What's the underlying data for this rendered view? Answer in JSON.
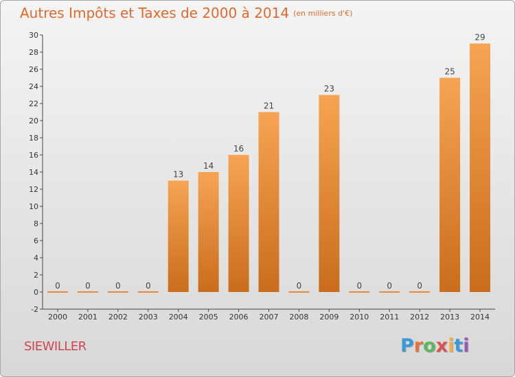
{
  "header": {
    "title": "Autres Impôts et Taxes de 2000 à 2014",
    "subtitle": "(en milliers d'€)"
  },
  "footer": {
    "town": "SIEWILLER",
    "logo": {
      "letters": [
        "P",
        "r",
        "o",
        "x",
        "i",
        "t",
        "i"
      ],
      "colors": [
        "#3a9ad9",
        "#e8733a",
        "#5cb85c",
        "#d9534f",
        "#f0ad4e",
        "#3a9ad9",
        "#9b59b6"
      ]
    }
  },
  "colors": {
    "title": "#e06a2c",
    "bar_top": "#f6a453",
    "bar_bottom": "#c96d1c",
    "town": "#d04552"
  },
  "chart_data": {
    "type": "bar",
    "categories": [
      "2000",
      "2001",
      "2002",
      "2003",
      "2004",
      "2005",
      "2006",
      "2007",
      "2008",
      "2009",
      "2010",
      "2011",
      "2012",
      "2013",
      "2014"
    ],
    "values": [
      0,
      0,
      0,
      0,
      13,
      14,
      16,
      21,
      0,
      23,
      0,
      0,
      0,
      25,
      29
    ],
    "title": "Autres Impôts et Taxes de 2000 à 2014",
    "ylim": [
      -2,
      30
    ],
    "yticks": [
      -2,
      0,
      2,
      4,
      6,
      8,
      10,
      12,
      14,
      16,
      18,
      20,
      22,
      24,
      26,
      28,
      30
    ],
    "grid": false
  }
}
